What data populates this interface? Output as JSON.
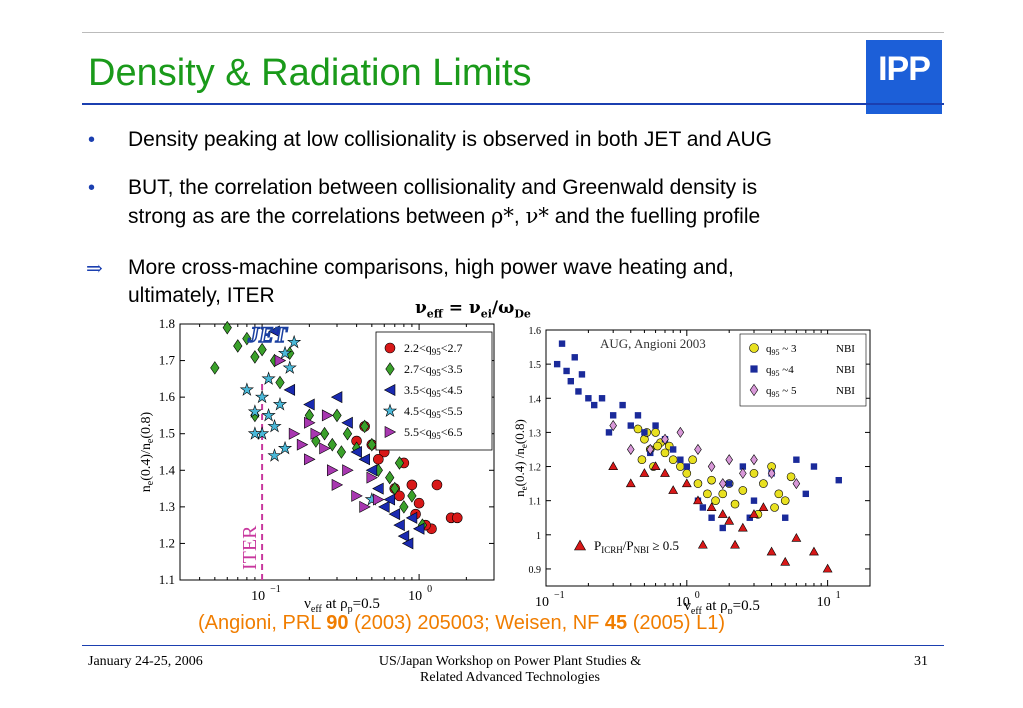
{
  "slide": {
    "title": "Density & Radiation Limits",
    "logo_text": "IPP",
    "bullets": [
      {
        "marker": "•",
        "text": "Density peaking at low collisionality is observed in both JET and AUG"
      },
      {
        "marker": "•",
        "line1": "BUT, the correlation between collisionality and Greenwald density is",
        "line2_a": "strong as are the correlations between ",
        "rho": "ρ*",
        "comma": ", ",
        "nu": "ν*",
        "line2_b": " and the fuelling profile"
      },
      {
        "marker": "⇒",
        "line1": "More cross-machine comparisons, high power wave heating and,",
        "line2": "ultimately, ITER"
      }
    ],
    "formula": {
      "nu": "ν",
      "sub1": "eff",
      "eq": " = ν",
      "sub2": "ei",
      "slash": "/ω",
      "sub3": "De"
    },
    "citation": {
      "p1": "(Angioni, PRL ",
      "b1": "90",
      "p2": " (2003) 205003; Weisen, NF ",
      "b2": "45",
      "p3": " (2005) L1)"
    },
    "footer": {
      "date": "January 24-25, 2006",
      "line1": "US/Japan Workshop on Power Plant Studies &",
      "line2": "Related Advanced Technologies",
      "page": "31"
    }
  },
  "chart_data": [
    {
      "type": "scatter",
      "panel": "JET",
      "logo": "JET",
      "xlabel": "ν_eff at ρ_p=0.5",
      "ylabel": "n_e(0.4)/n_e(0.8)",
      "xscale": "log",
      "xlim": [
        0.03,
        3.0
      ],
      "ylim": [
        1.1,
        1.8
      ],
      "yticks": [
        "1.1",
        "1.2",
        "1.3",
        "1.4",
        "1.5",
        "1.6",
        "1.7",
        "1.8"
      ],
      "xticks": [
        {
          "v": 0.1,
          "label": "10",
          "exp": "−1"
        },
        {
          "v": 1.0,
          "label": "10",
          "exp": "0"
        }
      ],
      "vline": {
        "x": 0.1,
        "label": "ITER",
        "color": "#c8389e"
      },
      "legend_position": "top-right",
      "series": [
        {
          "name": "2.2<q95<2.7",
          "marker": "circle",
          "color": "#d81818",
          "points": [
            [
              0.4,
              1.48
            ],
            [
              0.45,
              1.52
            ],
            [
              0.5,
              1.47
            ],
            [
              0.6,
              1.45
            ],
            [
              0.7,
              1.35
            ],
            [
              0.55,
              1.43
            ],
            [
              0.65,
              1.47
            ],
            [
              0.8,
              1.42
            ],
            [
              0.9,
              1.36
            ],
            [
              1.0,
              1.31
            ],
            [
              1.2,
              1.24
            ],
            [
              1.3,
              1.36
            ],
            [
              1.6,
              1.27
            ],
            [
              1.75,
              1.27
            ],
            [
              0.75,
              1.33
            ],
            [
              0.95,
              1.28
            ],
            [
              1.1,
              1.25
            ]
          ]
        },
        {
          "name": "2.7<q95<3.5",
          "marker": "diamond",
          "color": "#3aa02a",
          "points": [
            [
              0.05,
              1.68
            ],
            [
              0.06,
              1.79
            ],
            [
              0.07,
              1.74
            ],
            [
              0.08,
              1.76
            ],
            [
              0.09,
              1.71
            ],
            [
              0.1,
              1.73
            ],
            [
              0.12,
              1.7
            ],
            [
              0.15,
              1.72
            ],
            [
              0.2,
              1.55
            ],
            [
              0.25,
              1.5
            ],
            [
              0.28,
              1.47
            ],
            [
              0.3,
              1.55
            ],
            [
              0.35,
              1.5
            ],
            [
              0.4,
              1.46
            ],
            [
              0.45,
              1.52
            ],
            [
              0.5,
              1.47
            ],
            [
              0.55,
              1.4
            ],
            [
              0.6,
              1.5
            ],
            [
              0.65,
              1.38
            ],
            [
              0.7,
              1.35
            ],
            [
              0.8,
              1.3
            ],
            [
              0.9,
              1.33
            ],
            [
              1.05,
              1.25
            ],
            [
              0.22,
              1.48
            ],
            [
              0.32,
              1.45
            ],
            [
              0.75,
              1.42
            ],
            [
              0.09,
              1.55
            ],
            [
              0.13,
              1.64
            ]
          ]
        },
        {
          "name": "3.5<q95<4.5",
          "marker": "triangle-left",
          "color": "#1a2ab0",
          "points": [
            [
              0.12,
              1.78
            ],
            [
              0.15,
              1.62
            ],
            [
              0.2,
              1.58
            ],
            [
              0.3,
              1.6
            ],
            [
              0.35,
              1.53
            ],
            [
              0.4,
              1.45
            ],
            [
              0.45,
              1.43
            ],
            [
              0.5,
              1.4
            ],
            [
              0.55,
              1.35
            ],
            [
              0.6,
              1.3
            ],
            [
              0.7,
              1.28
            ],
            [
              0.8,
              1.22
            ],
            [
              0.9,
              1.27
            ],
            [
              1.0,
              1.24
            ],
            [
              0.65,
              1.32
            ],
            [
              0.75,
              1.25
            ],
            [
              0.85,
              1.2
            ]
          ]
        },
        {
          "name": "4.5<q95<5.5",
          "marker": "star",
          "color": "#4ab8d8",
          "points": [
            [
              0.08,
              1.62
            ],
            [
              0.09,
              1.56
            ],
            [
              0.1,
              1.6
            ],
            [
              0.11,
              1.55
            ],
            [
              0.12,
              1.52
            ],
            [
              0.13,
              1.58
            ],
            [
              0.1,
              1.5
            ],
            [
              0.09,
              1.5
            ],
            [
              0.14,
              1.46
            ],
            [
              0.12,
              1.44
            ],
            [
              0.11,
              1.65
            ],
            [
              0.15,
              1.68
            ],
            [
              0.16,
              1.75
            ],
            [
              0.14,
              1.72
            ],
            [
              0.5,
              1.32
            ]
          ]
        },
        {
          "name": "5.5<q95<6.5",
          "marker": "triangle-right",
          "color": "#a838b0",
          "points": [
            [
              0.13,
              1.7
            ],
            [
              0.16,
              1.5
            ],
            [
              0.18,
              1.47
            ],
            [
              0.2,
              1.43
            ],
            [
              0.22,
              1.5
            ],
            [
              0.25,
              1.46
            ],
            [
              0.28,
              1.4
            ],
            [
              0.3,
              1.36
            ],
            [
              0.35,
              1.4
            ],
            [
              0.4,
              1.33
            ],
            [
              0.45,
              1.3
            ],
            [
              0.5,
              1.38
            ],
            [
              0.55,
              1.32
            ],
            [
              0.2,
              1.53
            ],
            [
              0.26,
              1.55
            ]
          ]
        }
      ]
    },
    {
      "type": "scatter",
      "panel": "AUG",
      "annotation": "AUG, Angioni 2003",
      "xlabel": "ν_eff at ρ_p=0.5",
      "ylabel": "n_e(0.4) /n_e(0.8)",
      "xscale": "log",
      "xlim": [
        0.1,
        20
      ],
      "ylim": [
        0.85,
        1.6
      ],
      "yticks": [
        "0.9",
        "1",
        "1.1",
        "1.2",
        "1.3",
        "1.4",
        "1.5",
        "1.6"
      ],
      "xticks": [
        {
          "v": 0.1,
          "label": "10",
          "exp": "−1"
        },
        {
          "v": 1.0,
          "label": "10",
          "exp": "0"
        },
        {
          "v": 10.0,
          "label": "10",
          "exp": "1"
        }
      ],
      "legend_position": "top-right",
      "series": [
        {
          "name": "q95 ~ 3",
          "tag": "NBI",
          "marker": "circle",
          "color": "#e8e020",
          "points": [
            [
              0.45,
              1.31
            ],
            [
              0.5,
              1.28
            ],
            [
              0.55,
              1.25
            ],
            [
              0.6,
              1.3
            ],
            [
              0.65,
              1.27
            ],
            [
              0.7,
              1.24
            ],
            [
              0.8,
              1.22
            ],
            [
              0.9,
              1.2
            ],
            [
              1.0,
              1.18
            ],
            [
              1.2,
              1.15
            ],
            [
              1.4,
              1.12
            ],
            [
              1.6,
              1.1
            ],
            [
              1.8,
              1.12
            ],
            [
              2.0,
              1.15
            ],
            [
              2.5,
              1.13
            ],
            [
              3.0,
              1.18
            ],
            [
              3.5,
              1.15
            ],
            [
              4.0,
              1.2
            ],
            [
              4.5,
              1.12
            ],
            [
              5.0,
              1.1
            ],
            [
              5.5,
              1.17
            ],
            [
              0.48,
              1.22
            ],
            [
              0.58,
              1.2
            ],
            [
              0.75,
              1.26
            ],
            [
              1.1,
              1.22
            ],
            [
              1.5,
              1.16
            ],
            [
              2.2,
              1.09
            ],
            [
              3.2,
              1.06
            ],
            [
              4.2,
              1.08
            ],
            [
              0.52,
              1.3
            ],
            [
              0.62,
              1.26
            ]
          ]
        },
        {
          "name": "q95 ~4",
          "tag": "NBI",
          "marker": "square",
          "color": "#1a2a9a",
          "points": [
            [
              0.12,
              1.5
            ],
            [
              0.14,
              1.48
            ],
            [
              0.15,
              1.45
            ],
            [
              0.17,
              1.42
            ],
            [
              0.18,
              1.47
            ],
            [
              0.2,
              1.4
            ],
            [
              0.22,
              1.38
            ],
            [
              0.25,
              1.4
            ],
            [
              0.3,
              1.35
            ],
            [
              0.35,
              1.38
            ],
            [
              0.4,
              1.32
            ],
            [
              0.45,
              1.35
            ],
            [
              0.5,
              1.3
            ],
            [
              0.6,
              1.32
            ],
            [
              0.7,
              1.28
            ],
            [
              0.8,
              1.25
            ],
            [
              0.9,
              1.22
            ],
            [
              1.0,
              1.2
            ],
            [
              1.2,
              1.1
            ],
            [
              1.5,
              1.05
            ],
            [
              2.0,
              1.15
            ],
            [
              2.5,
              1.2
            ],
            [
              3.0,
              1.1
            ],
            [
              4.0,
              1.18
            ],
            [
              6.0,
              1.22
            ],
            [
              8.0,
              1.2
            ],
            [
              12.0,
              1.16
            ],
            [
              0.13,
              1.56
            ],
            [
              0.16,
              1.52
            ],
            [
              0.28,
              1.3
            ],
            [
              0.55,
              1.24
            ],
            [
              1.3,
              1.08
            ],
            [
              1.8,
              1.02
            ],
            [
              2.8,
              1.05
            ],
            [
              5.0,
              1.05
            ],
            [
              7.0,
              1.12
            ]
          ]
        },
        {
          "name": "q95 ~ 5",
          "tag": "NBI",
          "marker": "diamond",
          "color": "#d898d8",
          "points": [
            [
              0.3,
              1.32
            ],
            [
              0.55,
              1.25
            ],
            [
              0.7,
              1.28
            ],
            [
              0.9,
              1.3
            ],
            [
              1.2,
              1.25
            ],
            [
              1.5,
              1.2
            ],
            [
              2.0,
              1.22
            ],
            [
              2.5,
              1.18
            ],
            [
              3.0,
              1.22
            ],
            [
              4.0,
              1.18
            ],
            [
              6.0,
              1.15
            ],
            [
              0.4,
              1.25
            ],
            [
              1.8,
              1.15
            ]
          ]
        },
        {
          "name": "P_ICRH/P_NBI ≥ 0.5",
          "marker": "triangle-up",
          "color": "#d81818",
          "points": [
            [
              0.3,
              1.2
            ],
            [
              0.4,
              1.15
            ],
            [
              0.5,
              1.18
            ],
            [
              0.6,
              1.2
            ],
            [
              0.8,
              1.13
            ],
            [
              1.0,
              1.15
            ],
            [
              1.2,
              1.1
            ],
            [
              1.5,
              1.08
            ],
            [
              1.8,
              1.06
            ],
            [
              2.0,
              1.04
            ],
            [
              2.5,
              1.02
            ],
            [
              3.0,
              1.06
            ],
            [
              3.5,
              1.08
            ],
            [
              4.0,
              0.95
            ],
            [
              5.0,
              0.92
            ],
            [
              6.0,
              0.99
            ],
            [
              8.0,
              0.95
            ],
            [
              10.0,
              0.9
            ],
            [
              1.3,
              0.97
            ],
            [
              2.2,
              0.97
            ],
            [
              0.7,
              1.18
            ]
          ]
        }
      ]
    }
  ]
}
